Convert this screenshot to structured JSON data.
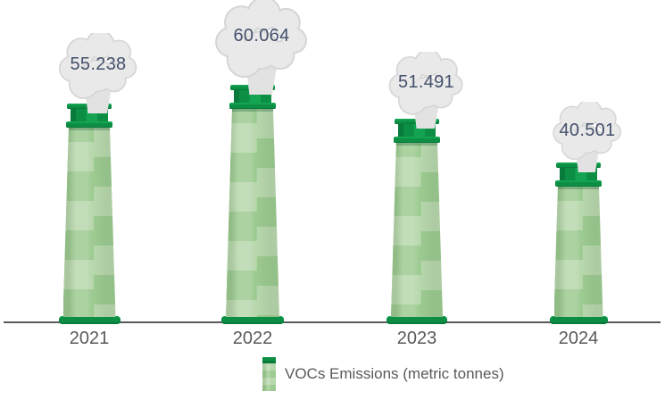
{
  "chart_data": {
    "type": "bar",
    "title": "",
    "categories": [
      "2021",
      "2022",
      "2023",
      "2024"
    ],
    "values": [
      55.238,
      60.064,
      51.491,
      40.501
    ],
    "value_labels": [
      "55.238",
      "60.064",
      "51.491",
      "40.501"
    ],
    "xlabel": "",
    "ylabel": "",
    "ylim": [
      0,
      66
    ],
    "grid": false,
    "bar_style": "green-chimney-pictogram-with-smoke-cloud-value-labels",
    "legend": {
      "position": "bottom-center",
      "label": "VOCs Emissions (metric tonnes)"
    }
  },
  "colors": {
    "background": "#ffffff",
    "chimney_dark_green": "#0c8f45",
    "chimney_green_highlight": "#14a351",
    "chimney_green_shadow": "#087a3b",
    "chimney_body_light": "#b7d7ac",
    "chimney_body_medium": "#9cca90",
    "smoke_fill": "#e9e9e9",
    "smoke_stem": "#e2e2e2",
    "smoke_outline": "#d6d6d6",
    "value_text": "#44506b",
    "axis_text": "#595959",
    "axis_line": "#58595b"
  }
}
